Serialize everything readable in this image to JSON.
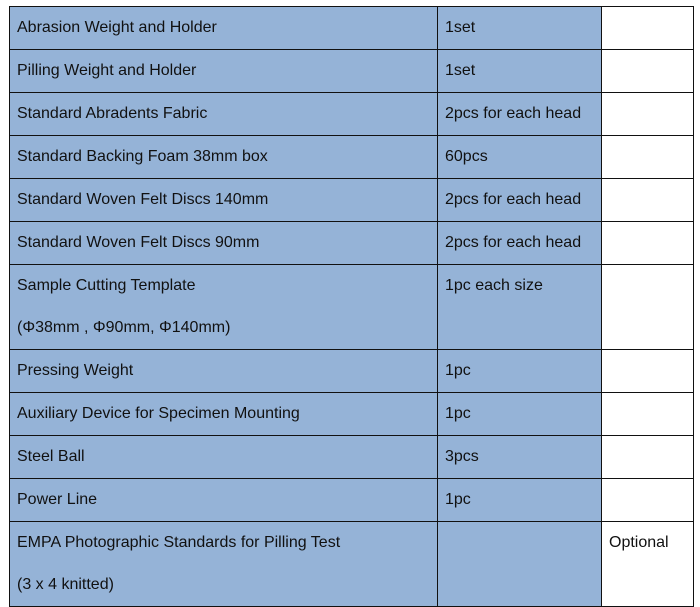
{
  "rows": [
    {
      "item": [
        "Abrasion Weight and Holder"
      ],
      "qty": "1set",
      "note": ""
    },
    {
      "item": [
        "Pilling Weight and Holder"
      ],
      "qty": "1set",
      "note": ""
    },
    {
      "item": [
        "Standard Abradents Fabric"
      ],
      "qty": "2pcs for each head",
      "note": ""
    },
    {
      "item": [
        "Standard Backing Foam 38mm box"
      ],
      "qty": "60pcs",
      "note": ""
    },
    {
      "item": [
        "Standard Woven Felt Discs 140mm"
      ],
      "qty": "2pcs for each head",
      "note": ""
    },
    {
      "item": [
        "Standard Woven Felt Discs 90mm"
      ],
      "qty": "2pcs for each head",
      "note": ""
    },
    {
      "item": [
        "Sample Cutting Template",
        "(Φ38mm , Φ90mm, Φ140mm)"
      ],
      "qty": "1pc each size",
      "note": ""
    },
    {
      "item": [
        "Pressing Weight"
      ],
      "qty": "1pc",
      "note": ""
    },
    {
      "item": [
        "Auxiliary Device for Specimen Mounting"
      ],
      "qty": "1pc",
      "note": ""
    },
    {
      "item": [
        "Steel Ball"
      ],
      "qty": "3pcs",
      "note": ""
    },
    {
      "item": [
        "Power Line"
      ],
      "qty": "1pc",
      "note": ""
    },
    {
      "item": [
        "EMPA Photographic Standards for Pilling Test",
        " (3 x 4 knitted)"
      ],
      "qty": "",
      "note": "Optional"
    }
  ],
  "colors": {
    "cell_fill": "#95b3d7",
    "border": "#111111"
  }
}
